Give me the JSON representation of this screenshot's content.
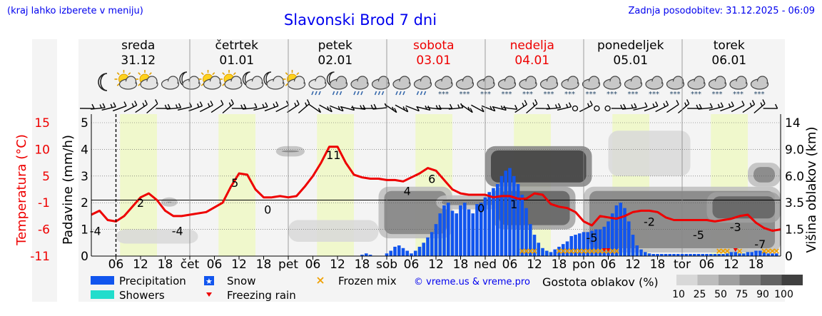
{
  "page": {
    "title": "Slavonski Brod 7 dni",
    "region_note": "(kraj lahko izberete v meniju)",
    "update_note": "Zadnja posodobitev: 31.12.2025 - 06:09",
    "copyright": "© vreme.us & vreme.pro"
  },
  "days": [
    {
      "name": "sreda",
      "date": "31.12",
      "weekend": false
    },
    {
      "name": "četrtek",
      "date": "01.01",
      "weekend": false
    },
    {
      "name": "petek",
      "date": "02.01",
      "weekend": false
    },
    {
      "name": "sobota",
      "date": "03.01",
      "weekend": true
    },
    {
      "name": "nedelja",
      "date": "04.01",
      "weekend": true
    },
    {
      "name": "ponedeljek",
      "date": "05.01",
      "weekend": false
    },
    {
      "name": "torek",
      "date": "06.01",
      "weekend": false
    }
  ],
  "colors": {
    "temperature": "#ee0000",
    "precipitation": "#1155ee",
    "showers": "#22ddcc",
    "snow": "#1155ee",
    "freezing_rain": "#ee0000",
    "frozen_mix": "#f0a000",
    "day_band": "#f0f8cc",
    "night_band": "#f4f4f4",
    "weekend": "#ee0000",
    "link": "#0000ee"
  },
  "icons": [
    "moon-icon",
    "partly-cloudy-day-icon",
    "partly-cloudy-day-icon",
    "cloudy-icon",
    "cloudy-night-icon",
    "partly-cloudy-day-icon",
    "partly-cloudy-day-icon",
    "cloudy-night-icon",
    "cloudy-night-icon",
    "partly-cloudy-day-icon",
    "partly-cloudy-rain-icon",
    "cloudy-night-rain-icon",
    "rain-icon",
    "rain-icon",
    "rain-icon",
    "cloudy-rain-icon",
    "snow-icon",
    "snow-icon",
    "snow-icon",
    "snow-icon",
    "snow-icon",
    "snow-icon",
    "snow-icon",
    "snow-icon",
    "snow-icon",
    "snow-icon",
    "snow-icon",
    "snow-icon",
    "snow-icon",
    "snow-icon",
    "snow-icon",
    "snow-icon"
  ],
  "chart_data": {
    "type": "line",
    "title": "Slavonski Brod 7 dni",
    "x_unit": "hours from 31.12 00:00",
    "x_range": [
      0,
      168
    ],
    "x_ticks": [
      {
        "h": 6,
        "label": "06"
      },
      {
        "h": 12,
        "label": "12"
      },
      {
        "h": 18,
        "label": "18"
      },
      {
        "h": 24,
        "label": "čet"
      },
      {
        "h": 30,
        "label": "06"
      },
      {
        "h": 36,
        "label": "12"
      },
      {
        "h": 42,
        "label": "18"
      },
      {
        "h": 48,
        "label": "pet"
      },
      {
        "h": 54,
        "label": "06"
      },
      {
        "h": 60,
        "label": "12"
      },
      {
        "h": 66,
        "label": "18"
      },
      {
        "h": 72,
        "label": "sob"
      },
      {
        "h": 78,
        "label": "06"
      },
      {
        "h": 84,
        "label": "12"
      },
      {
        "h": 90,
        "label": "18"
      },
      {
        "h": 96,
        "label": "ned"
      },
      {
        "h": 102,
        "label": "06"
      },
      {
        "h": 108,
        "label": "12"
      },
      {
        "h": 114,
        "label": "18"
      },
      {
        "h": 120,
        "label": "pon"
      },
      {
        "h": 126,
        "label": "06"
      },
      {
        "h": 132,
        "label": "12"
      },
      {
        "h": 138,
        "label": "18"
      },
      {
        "h": 144,
        "label": "tor"
      },
      {
        "h": 150,
        "label": "06"
      },
      {
        "h": 156,
        "label": "12"
      },
      {
        "h": 162,
        "label": "18"
      }
    ],
    "now_hour": 6,
    "axes": {
      "precip_label": "Padavine (mm/h)",
      "precip_range": [
        0,
        5
      ],
      "precip_ticks": [
        "0",
        "1",
        "2",
        "3",
        "4",
        "5"
      ],
      "temp_label": "Temperatura (°C)",
      "temp_ticks": [
        {
          "label": "15",
          "value": 5
        },
        {
          "label": "10",
          "value": 4
        },
        {
          "label": "5",
          "value": 3
        },
        {
          "label": "-1",
          "value": 2
        },
        {
          "label": "-6",
          "value": 1
        },
        {
          "label": "-11",
          "value": 0
        }
      ],
      "cloud_label": "Višina oblakov (km)",
      "cloud_ticks": [
        "0",
        "1.5",
        "3.5",
        "6.0",
        "9.0",
        "14"
      ]
    },
    "temperature_curve": {
      "description": "Temperature plotted on precipitation scale (0-5)",
      "x": [
        0,
        2,
        4,
        6,
        8,
        10,
        12,
        14,
        16,
        18,
        20,
        22,
        24,
        28,
        32,
        34,
        36,
        38,
        40,
        42,
        44,
        46,
        48,
        50,
        52,
        54,
        56,
        58,
        60,
        62,
        64,
        66,
        68,
        70,
        72,
        74,
        76,
        78,
        80,
        82,
        84,
        86,
        88,
        90,
        92,
        94,
        96,
        98,
        100,
        102,
        104,
        106,
        108,
        110,
        112,
        114,
        116,
        118,
        120,
        122,
        124,
        126,
        128,
        130,
        132,
        134,
        136,
        138,
        140,
        142,
        144,
        146,
        148,
        150,
        152,
        154,
        156,
        158,
        160,
        162,
        164,
        166,
        168
      ],
      "y": [
        1.55,
        1.7,
        1.35,
        1.3,
        1.5,
        1.85,
        2.2,
        2.35,
        2.1,
        1.7,
        1.5,
        1.5,
        1.55,
        1.65,
        2.0,
        2.6,
        3.1,
        3.05,
        2.5,
        2.2,
        2.2,
        2.25,
        2.2,
        2.25,
        2.6,
        3.0,
        3.5,
        4.1,
        4.1,
        3.5,
        3.05,
        2.95,
        2.9,
        2.9,
        2.85,
        2.85,
        2.8,
        2.95,
        3.1,
        3.3,
        3.2,
        2.85,
        2.5,
        2.35,
        2.3,
        2.3,
        2.3,
        2.2,
        2.25,
        2.25,
        2.15,
        2.15,
        2.35,
        2.3,
        1.95,
        1.85,
        1.8,
        1.65,
        1.3,
        1.15,
        1.5,
        1.45,
        1.4,
        1.5,
        1.65,
        1.7,
        1.7,
        1.65,
        1.45,
        1.35,
        1.35,
        1.35,
        1.35,
        1.35,
        1.3,
        1.35,
        1.4,
        1.5,
        1.55,
        1.25,
        1.05,
        0.95,
        1.0
      ]
    },
    "temperature_labels": [
      {
        "h": 1,
        "text": "-4"
      },
      {
        "h": 12,
        "text": "2"
      },
      {
        "h": 21,
        "text": "-4"
      },
      {
        "h": 35,
        "text": "5"
      },
      {
        "h": 43,
        "text": "0"
      },
      {
        "h": 59,
        "text": "11"
      },
      {
        "h": 77,
        "text": "4"
      },
      {
        "h": 83,
        "text": "6"
      },
      {
        "h": 95,
        "text": "0"
      },
      {
        "h": 103,
        "text": "1"
      },
      {
        "h": 122,
        "text": "-5"
      },
      {
        "h": 136,
        "text": "-2"
      },
      {
        "h": 148,
        "text": "-5"
      },
      {
        "h": 157,
        "text": "-3"
      },
      {
        "h": 163,
        "text": "-7"
      }
    ],
    "temperature_label_values": [
      {
        "h": 1,
        "y": 0.95
      },
      {
        "h": 12,
        "y": 2.0
      },
      {
        "h": 21,
        "y": 0.95
      },
      {
        "h": 35,
        "y": 2.75
      },
      {
        "h": 43,
        "y": 1.75
      },
      {
        "h": 59,
        "y": 3.8
      },
      {
        "h": 77,
        "y": 2.45
      },
      {
        "h": 83,
        "y": 2.9
      },
      {
        "h": 95,
        "y": 1.8
      },
      {
        "h": 103,
        "y": 1.95
      },
      {
        "h": 122,
        "y": 0.7
      },
      {
        "h": 136,
        "y": 1.3
      },
      {
        "h": 148,
        "y": 0.8
      },
      {
        "h": 157,
        "y": 1.1
      },
      {
        "h": 163,
        "y": 0.45
      }
    ],
    "precipitation": {
      "start_hour": 66,
      "step_hours": 1,
      "values_mm_h": [
        0.05,
        0.1,
        0.05,
        0,
        0,
        0,
        0.1,
        0.2,
        0.35,
        0.4,
        0.3,
        0.2,
        0.1,
        0.2,
        0.35,
        0.5,
        0.7,
        0.9,
        1.2,
        1.6,
        1.9,
        2.0,
        1.7,
        1.6,
        1.9,
        2.0,
        1.75,
        1.6,
        1.95,
        2.0,
        2.2,
        2.4,
        2.55,
        2.7,
        3.0,
        3.2,
        3.3,
        3.0,
        2.7,
        2.3,
        1.8,
        1.2,
        0.8,
        0.5,
        0.3,
        0.2,
        0.15,
        0.25,
        0.35,
        0.45,
        0.55,
        0.75,
        0.8,
        0.85,
        0.9,
        0.9,
        0.95,
        1.0,
        1.0,
        1.1,
        1.3,
        1.6,
        1.9,
        2.0,
        1.8,
        1.3,
        0.8,
        0.4,
        0.25,
        0.15,
        0.1,
        0.08,
        0.08,
        0.08,
        0.08,
        0.08,
        0.08,
        0.08,
        0.08,
        0.08,
        0.08,
        0.08,
        0.08,
        0.08,
        0.08,
        0.08,
        0.08,
        0.08,
        0.08,
        0.1,
        0.15,
        0.15,
        0.1,
        0.1,
        0.15,
        0.15,
        0.2,
        0.2,
        0.15,
        0.1,
        0.1,
        0.1
      ]
    },
    "frozen_mix_hours": [
      105,
      106,
      107,
      108,
      114,
      115,
      116,
      117,
      118,
      119,
      120,
      121,
      122,
      123,
      124,
      125,
      126,
      127,
      128,
      153,
      154,
      155,
      158,
      164,
      165,
      166,
      167
    ],
    "freezing_rain_hours": [
      125,
      126,
      157
    ],
    "legend": {
      "precipitation": "Precipitation",
      "showers": "Showers",
      "snow": "Snow",
      "freezing_rain": "Freezing rain",
      "frozen_mix": "Frozen mix",
      "cloud_density_title": "Gostota oblakov (%)",
      "cloud_density_levels": [
        "10",
        "25",
        "50",
        "75",
        "90",
        "100"
      ],
      "cloud_density_colors": [
        "#d8d8d8",
        "#bdbdbd",
        "#a0a0a0",
        "#828282",
        "#626262",
        "#404040"
      ]
    },
    "cloud_blobs": [
      {
        "h0": 6,
        "h1": 26,
        "cloud_km0": 0.7,
        "cloud_km1": 1.5,
        "density": 2
      },
      {
        "h0": 17,
        "h1": 21,
        "cloud_km0": 3.2,
        "cloud_km1": 4.0,
        "density": 3
      },
      {
        "h0": 45,
        "h1": 52,
        "cloud_km0": 8.2,
        "cloud_km1": 9.6,
        "density": 3
      },
      {
        "h0": 48,
        "h1": 70,
        "cloud_km0": 0.8,
        "cloud_km1": 2.2,
        "density": 2
      },
      {
        "h0": 70,
        "h1": 88,
        "cloud_km0": 1.0,
        "cloud_km1": 5.0,
        "density": 3
      },
      {
        "h0": 84,
        "h1": 100,
        "cloud_km0": 3.0,
        "cloud_km1": 4.2,
        "density": 3
      },
      {
        "h0": 96,
        "h1": 122,
        "cloud_km0": 5.0,
        "cloud_km1": 9.6,
        "density": 5
      },
      {
        "h0": 98,
        "h1": 118,
        "cloud_km0": 1.5,
        "cloud_km1": 5.0,
        "density": 4
      },
      {
        "h0": 120,
        "h1": 168,
        "cloud_km0": 0.2,
        "cloud_km1": 5.0,
        "density": 3
      },
      {
        "h0": 126,
        "h1": 146,
        "cloud_km0": 6.0,
        "cloud_km1": 12.5,
        "density": 2
      },
      {
        "h0": 150,
        "h1": 168,
        "cloud_km0": 2.0,
        "cloud_km1": 4.5,
        "density": 4
      },
      {
        "h0": 160,
        "h1": 168,
        "cloud_km0": 5.0,
        "cloud_km1": 7.5,
        "density": 3
      }
    ]
  }
}
